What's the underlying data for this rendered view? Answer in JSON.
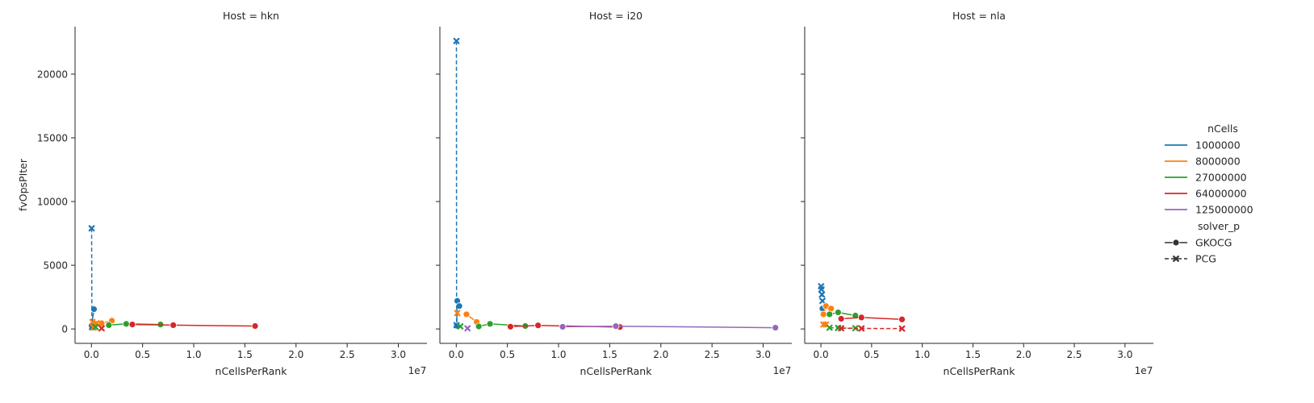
{
  "figure": {
    "facet_var": "Host",
    "legend": {
      "hue_title": "nCells",
      "hue_items": [
        {
          "label": "1000000",
          "color": "#1f77b4"
        },
        {
          "label": "8000000",
          "color": "#ff7f0e"
        },
        {
          "label": "27000000",
          "color": "#2ca02c"
        },
        {
          "label": "64000000",
          "color": "#d62728"
        },
        {
          "label": "125000000",
          "color": "#9467bd"
        }
      ],
      "style_title": "solver_p",
      "style_items": [
        {
          "label": "GKOCG",
          "marker": "circle",
          "dash": "solid"
        },
        {
          "label": "PCG",
          "marker": "x",
          "dash": "dashed"
        }
      ]
    }
  },
  "chart_data": [
    {
      "type": "line",
      "title": "Host = hkn",
      "xlabel": "nCellsPerRank",
      "ylabel": "fvOpsPIter",
      "x_offset_label": "1e7",
      "xlim": [
        -1.6,
        32.8
      ],
      "ylim": [
        -1130,
        23730
      ],
      "x_ticks": [
        "0.0",
        "0.5",
        "1.0",
        "1.5",
        "2.0",
        "2.5",
        "3.0"
      ],
      "y_ticks": [
        "0",
        "5000",
        "10000",
        "15000",
        "20000"
      ],
      "x_unit": "1e6 cells",
      "series": [
        {
          "name": "1000000 / GKOCG",
          "color": "#1f77b4",
          "marker": "circle",
          "dash": "solid",
          "x": [
            0.02,
            0.25
          ],
          "y": [
            250,
            1550
          ]
        },
        {
          "name": "1000000 / PCG",
          "color": "#1f77b4",
          "marker": "x",
          "dash": "dashed",
          "x": [
            0.02,
            0.05
          ],
          "y": [
            7900,
            150
          ]
        },
        {
          "name": "8000000 / GKOCG",
          "color": "#ff7f0e",
          "marker": "circle",
          "dash": "solid",
          "x": [
            0.5,
            1.0,
            2.0
          ],
          "y": [
            400,
            450,
            650
          ]
        },
        {
          "name": "8000000 / PCG",
          "color": "#ff7f0e",
          "marker": "x",
          "dash": "dashed",
          "x": [
            0.1,
            0.2,
            0.5
          ],
          "y": [
            550,
            100,
            450
          ]
        },
        {
          "name": "27000000 / GKOCG",
          "color": "#2ca02c",
          "marker": "circle",
          "dash": "solid",
          "x": [
            1.7,
            3.4,
            6.75
          ],
          "y": [
            300,
            400,
            350
          ]
        },
        {
          "name": "27000000 / PCG",
          "color": "#2ca02c",
          "marker": "x",
          "dash": "dashed",
          "x": [
            0.4
          ],
          "y": [
            150
          ]
        },
        {
          "name": "64000000 / GKOCG",
          "color": "#d62728",
          "marker": "circle",
          "dash": "solid",
          "x": [
            4.0,
            8.0,
            16.0
          ],
          "y": [
            350,
            300,
            230
          ]
        },
        {
          "name": "64000000 / PCG",
          "color": "#d62728",
          "marker": "x",
          "dash": "dashed",
          "x": [
            1.0
          ],
          "y": [
            50
          ]
        }
      ]
    },
    {
      "type": "line",
      "title": "Host = i20",
      "xlabel": "nCellsPerRank",
      "ylabel": "",
      "x_offset_label": "1e7",
      "xlim": [
        -1.6,
        32.8
      ],
      "ylim": [
        -1130,
        23730
      ],
      "x_ticks": [
        "0.0",
        "0.5",
        "1.0",
        "1.5",
        "2.0",
        "2.5",
        "3.0"
      ],
      "y_ticks": [],
      "x_unit": "1e6 cells",
      "series": [
        {
          "name": "1000000 / GKOCG",
          "color": "#1f77b4",
          "marker": "circle",
          "dash": "solid",
          "x": [
            0.05,
            0.1,
            0.3
          ],
          "y": [
            250,
            2200,
            1800
          ]
        },
        {
          "name": "1000000 / PCG",
          "color": "#1f77b4",
          "marker": "x",
          "dash": "dashed",
          "x": [
            0.02,
            0.03
          ],
          "y": [
            22600,
            300
          ]
        },
        {
          "name": "8000000 / GKOCG",
          "color": "#ff7f0e",
          "marker": "circle",
          "dash": "solid",
          "x": [
            1.0,
            2.0
          ],
          "y": [
            1150,
            550
          ]
        },
        {
          "name": "8000000 / PCG",
          "color": "#ff7f0e",
          "marker": "x",
          "dash": "dashed",
          "x": [
            0.1
          ],
          "y": [
            1250
          ]
        },
        {
          "name": "27000000 / GKOCG",
          "color": "#2ca02c",
          "marker": "circle",
          "dash": "solid",
          "x": [
            2.2,
            3.3,
            6.75
          ],
          "y": [
            200,
            400,
            230
          ]
        },
        {
          "name": "27000000 / PCG",
          "color": "#2ca02c",
          "marker": "x",
          "dash": "dashed",
          "x": [
            0.4
          ],
          "y": [
            200
          ]
        },
        {
          "name": "64000000 / GKOCG",
          "color": "#d62728",
          "marker": "circle",
          "dash": "solid",
          "x": [
            5.3,
            8.0,
            16.0
          ],
          "y": [
            180,
            280,
            150
          ]
        },
        {
          "name": "125000000 / GKOCG",
          "color": "#9467bd",
          "marker": "circle",
          "dash": "solid",
          "x": [
            10.4,
            15.6,
            31.2
          ],
          "y": [
            170,
            220,
            100
          ]
        },
        {
          "name": "125000000 / PCG",
          "color": "#9467bd",
          "marker": "x",
          "dash": "dashed",
          "x": [
            1.1
          ],
          "y": [
            50
          ]
        }
      ]
    },
    {
      "type": "line",
      "title": "Host = nla",
      "xlabel": "nCellsPerRank",
      "ylabel": "",
      "x_offset_label": "1e7",
      "xlim": [
        -1.6,
        32.8
      ],
      "ylim": [
        -1130,
        23730
      ],
      "x_ticks": [
        "0.0",
        "0.5",
        "1.0",
        "1.5",
        "2.0",
        "2.5",
        "3.0"
      ],
      "y_ticks": [],
      "x_unit": "1e6 cells",
      "series": [
        {
          "name": "1000000 / PCG",
          "color": "#1f77b4",
          "marker": "x",
          "dash": "dashed",
          "x": [
            0.02,
            0.05,
            0.1,
            0.15
          ],
          "y": [
            3350,
            3100,
            2700,
            2200
          ]
        },
        {
          "name": "1000000 / GKOCG",
          "color": "#1f77b4",
          "marker": "circle",
          "dash": "solid",
          "x": [
            0.15
          ],
          "y": [
            1600
          ]
        },
        {
          "name": "8000000 / GKOCG",
          "color": "#ff7f0e",
          "marker": "circle",
          "dash": "solid",
          "x": [
            0.25,
            0.5,
            1.0
          ],
          "y": [
            1150,
            1800,
            1600
          ]
        },
        {
          "name": "8000000 / PCG",
          "color": "#ff7f0e",
          "marker": "x",
          "dash": "dashed",
          "x": [
            0.25,
            0.5
          ],
          "y": [
            350,
            350
          ]
        },
        {
          "name": "27000000 / GKOCG",
          "color": "#2ca02c",
          "marker": "circle",
          "dash": "solid",
          "x": [
            0.85,
            1.7,
            3.4
          ],
          "y": [
            1150,
            1300,
            1050
          ]
        },
        {
          "name": "27000000 / PCG",
          "color": "#2ca02c",
          "marker": "x",
          "dash": "dashed",
          "x": [
            0.85,
            1.7,
            3.4
          ],
          "y": [
            100,
            80,
            60
          ]
        },
        {
          "name": "64000000 / GKOCG",
          "color": "#d62728",
          "marker": "circle",
          "dash": "solid",
          "x": [
            2.0,
            4.0,
            8.0
          ],
          "y": [
            800,
            900,
            750
          ]
        },
        {
          "name": "64000000 / PCG",
          "color": "#d62728",
          "marker": "x",
          "dash": "dashed",
          "x": [
            2.0,
            4.0,
            8.0
          ],
          "y": [
            50,
            40,
            30
          ]
        }
      ]
    }
  ]
}
